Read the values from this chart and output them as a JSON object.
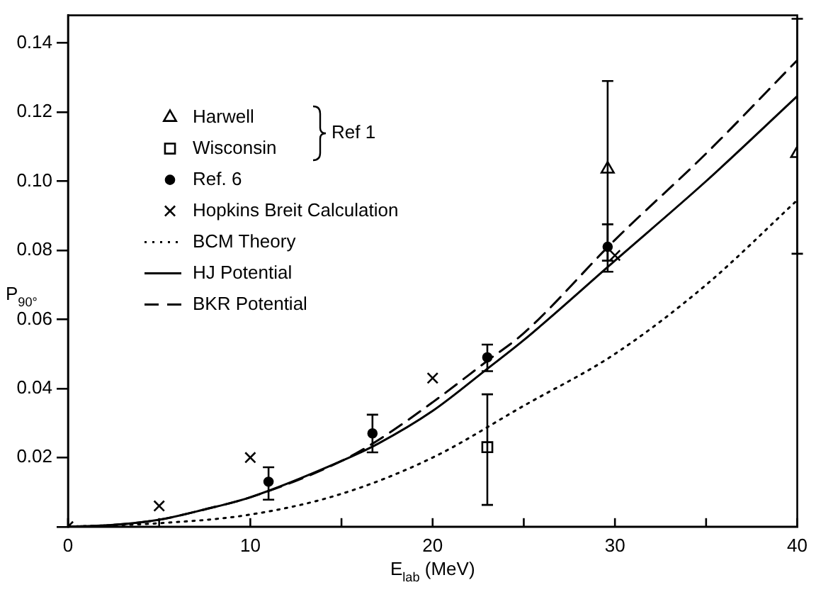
{
  "chart_data": {
    "type": "scatter",
    "xlabel": "E$_{lab}$ (MeV)",
    "ylabel": "P$_{90°}$",
    "xlim": [
      0,
      40
    ],
    "ylim": [
      0,
      0.148
    ],
    "xticks": [
      0,
      {
        "value": 5,
        "label": null
      },
      10,
      {
        "value": 15,
        "label": null
      },
      20,
      {
        "value": 25,
        "label": null
      },
      30,
      {
        "value": 35,
        "label": null
      },
      40
    ],
    "yticks": [
      {
        "value": 0,
        "label": null
      },
      0.02,
      0.04,
      0.06,
      0.08,
      {
        "value": 0.1,
        "label": "0.10"
      },
      0.12,
      0.14
    ],
    "grid": false,
    "legend": "top left",
    "annotations": [
      "Ref 1"
    ],
    "series": [
      {
        "name": "Harwell",
        "type": "scatter",
        "marker": "triangle",
        "color": "#000000",
        "x": [
          29.6,
          40
        ],
        "values": [
          0.1035,
          0.108
        ],
        "errors": [
          [
            0.077,
            0.129
          ],
          [
            0.079,
            0.147
          ]
        ]
      },
      {
        "name": "Wisconsin",
        "type": "scatter",
        "marker": "square",
        "color": "#000000",
        "x": [
          23
        ],
        "values": [
          0.023
        ],
        "errors": [
          [
            0.0063,
            0.0383
          ]
        ]
      },
      {
        "name": "Ref. 6",
        "type": "scatter",
        "marker": "circle",
        "color": "#000000",
        "x": [
          11,
          16.7,
          23,
          29.6
        ],
        "values": [
          0.013,
          0.027,
          0.049,
          0.081
        ],
        "errors": [
          [
            0.0078,
            0.0172
          ],
          [
            0.0215,
            0.0324
          ],
          [
            0.045,
            0.0527
          ],
          [
            0.0738,
            0.0875
          ]
        ]
      },
      {
        "name": "Hopkins Breit Calculation",
        "type": "scatter",
        "marker": "cross",
        "color": "#000000",
        "x": [
          0,
          5,
          10,
          20,
          30
        ],
        "values": [
          0,
          0.006,
          0.02,
          0.043,
          0.0785
        ]
      },
      {
        "name": "BCM Theory",
        "type": "line",
        "line_style": "dotted",
        "color": "#000000",
        "x": [
          0,
          5,
          10,
          15,
          20,
          25,
          30,
          35,
          40
        ],
        "values": [
          0,
          0.001,
          0.0035,
          0.0095,
          0.02,
          0.035,
          0.05,
          0.07,
          0.0945
        ]
      },
      {
        "name": "HJ Potential",
        "type": "line",
        "line_style": "solid",
        "color": "#000000",
        "x": [
          0,
          2.5,
          5,
          7.5,
          10,
          15,
          17,
          20,
          23,
          25,
          30,
          35,
          40
        ],
        "values": [
          0,
          0.0005,
          0.002,
          0.005,
          0.0085,
          0.019,
          0.024,
          0.0335,
          0.0457,
          0.054,
          0.077,
          0.1,
          0.1246
        ]
      },
      {
        "name": "BKR Potential",
        "type": "line",
        "line_style": "dashed",
        "color": "#000000",
        "x": [
          0,
          2.5,
          5,
          7.5,
          10,
          15,
          17,
          20,
          23,
          25,
          30,
          35,
          40
        ],
        "values": [
          0,
          0.0005,
          0.002,
          0.005,
          0.0085,
          0.019,
          0.025,
          0.036,
          0.048,
          0.056,
          0.083,
          0.108,
          0.135
        ]
      }
    ]
  }
}
